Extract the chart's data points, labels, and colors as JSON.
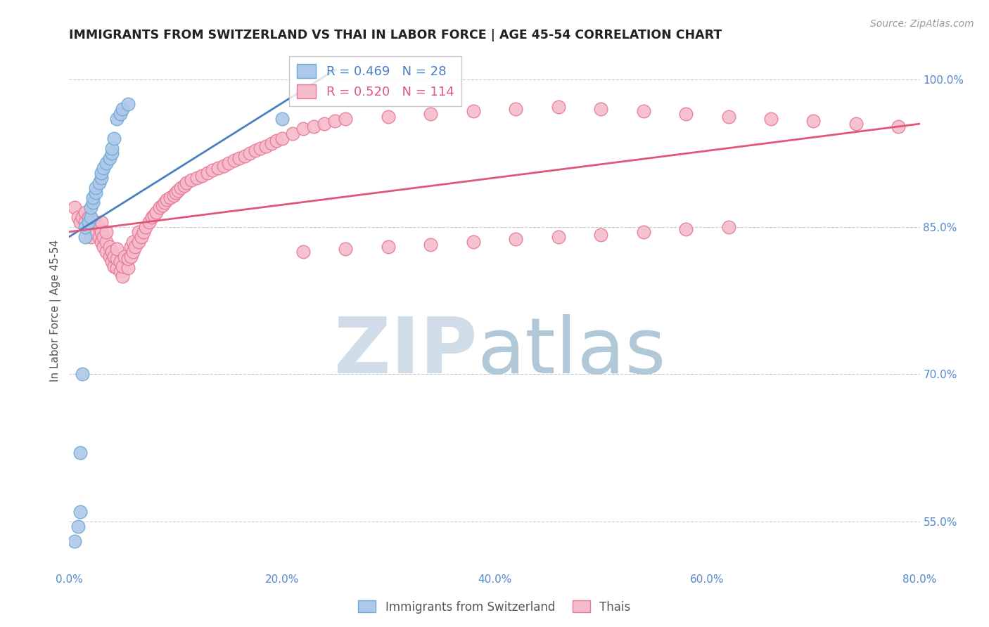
{
  "title": "IMMIGRANTS FROM SWITZERLAND VS THAI IN LABOR FORCE | AGE 45-54 CORRELATION CHART",
  "source": "Source: ZipAtlas.com",
  "ylabel": "In Labor Force | Age 45-54",
  "swiss_R": 0.469,
  "swiss_N": 28,
  "thai_R": 0.52,
  "thai_N": 114,
  "xlim": [
    0.0,
    0.8
  ],
  "ylim": [
    0.5,
    1.03
  ],
  "xtick_labels": [
    "0.0%",
    "",
    "20.0%",
    "",
    "40.0%",
    "",
    "60.0%",
    "",
    "80.0%"
  ],
  "xtick_vals": [
    0.0,
    0.1,
    0.2,
    0.3,
    0.4,
    0.5,
    0.6,
    0.7,
    0.8
  ],
  "ytick_labels_right": [
    "100.0%",
    "85.0%",
    "70.0%",
    "55.0%"
  ],
  "ytick_vals_right": [
    1.0,
    0.85,
    0.7,
    0.55
  ],
  "swiss_color": "#adc8e8",
  "swiss_edge_color": "#6eaad4",
  "thai_color": "#f5bccb",
  "thai_edge_color": "#e87898",
  "swiss_line_color": "#4a7fc1",
  "thai_line_color": "#e05878",
  "title_color": "#222222",
  "axis_color": "#5588cc",
  "watermark_zip_color": "#d0dce8",
  "watermark_atlas_color": "#b0c8d8",
  "swiss_scatter_x": [
    0.005,
    0.008,
    0.01,
    0.01,
    0.012,
    0.015,
    0.015,
    0.018,
    0.02,
    0.02,
    0.022,
    0.022,
    0.025,
    0.025,
    0.028,
    0.03,
    0.03,
    0.032,
    0.035,
    0.038,
    0.04,
    0.04,
    0.042,
    0.045,
    0.048,
    0.05,
    0.055,
    0.2
  ],
  "swiss_scatter_y": [
    0.53,
    0.545,
    0.56,
    0.62,
    0.7,
    0.84,
    0.85,
    0.855,
    0.86,
    0.87,
    0.875,
    0.88,
    0.885,
    0.89,
    0.895,
    0.9,
    0.905,
    0.91,
    0.915,
    0.92,
    0.925,
    0.93,
    0.94,
    0.96,
    0.965,
    0.97,
    0.975,
    0.96
  ],
  "thai_scatter_x": [
    0.005,
    0.008,
    0.01,
    0.012,
    0.015,
    0.015,
    0.018,
    0.018,
    0.02,
    0.02,
    0.02,
    0.022,
    0.022,
    0.025,
    0.025,
    0.028,
    0.028,
    0.03,
    0.03,
    0.03,
    0.032,
    0.032,
    0.035,
    0.035,
    0.035,
    0.038,
    0.038,
    0.04,
    0.04,
    0.042,
    0.042,
    0.045,
    0.045,
    0.045,
    0.048,
    0.048,
    0.05,
    0.05,
    0.052,
    0.055,
    0.055,
    0.058,
    0.058,
    0.06,
    0.06,
    0.062,
    0.065,
    0.065,
    0.068,
    0.07,
    0.072,
    0.075,
    0.078,
    0.08,
    0.082,
    0.085,
    0.088,
    0.09,
    0.092,
    0.095,
    0.098,
    0.1,
    0.102,
    0.105,
    0.108,
    0.11,
    0.115,
    0.12,
    0.125,
    0.13,
    0.135,
    0.14,
    0.145,
    0.15,
    0.155,
    0.16,
    0.165,
    0.17,
    0.175,
    0.18,
    0.185,
    0.19,
    0.195,
    0.2,
    0.21,
    0.22,
    0.23,
    0.24,
    0.25,
    0.26,
    0.3,
    0.34,
    0.38,
    0.42,
    0.46,
    0.5,
    0.54,
    0.58,
    0.62,
    0.66,
    0.7,
    0.74,
    0.78,
    0.62,
    0.58,
    0.54,
    0.5,
    0.46,
    0.42,
    0.38,
    0.34,
    0.3,
    0.26,
    0.22
  ],
  "thai_scatter_y": [
    0.87,
    0.86,
    0.855,
    0.86,
    0.855,
    0.865,
    0.85,
    0.86,
    0.84,
    0.85,
    0.86,
    0.845,
    0.855,
    0.845,
    0.855,
    0.84,
    0.85,
    0.835,
    0.845,
    0.855,
    0.83,
    0.84,
    0.825,
    0.835,
    0.845,
    0.82,
    0.83,
    0.815,
    0.825,
    0.81,
    0.82,
    0.808,
    0.818,
    0.828,
    0.805,
    0.815,
    0.8,
    0.81,
    0.82,
    0.808,
    0.818,
    0.82,
    0.83,
    0.825,
    0.835,
    0.83,
    0.835,
    0.845,
    0.84,
    0.845,
    0.85,
    0.855,
    0.86,
    0.862,
    0.865,
    0.87,
    0.872,
    0.875,
    0.878,
    0.88,
    0.882,
    0.885,
    0.887,
    0.89,
    0.892,
    0.895,
    0.898,
    0.9,
    0.902,
    0.905,
    0.908,
    0.91,
    0.912,
    0.915,
    0.918,
    0.92,
    0.922,
    0.925,
    0.928,
    0.93,
    0.932,
    0.935,
    0.938,
    0.94,
    0.945,
    0.95,
    0.952,
    0.955,
    0.958,
    0.96,
    0.962,
    0.965,
    0.968,
    0.97,
    0.972,
    0.97,
    0.968,
    0.965,
    0.962,
    0.96,
    0.958,
    0.955,
    0.952,
    0.85,
    0.848,
    0.845,
    0.842,
    0.84,
    0.838,
    0.835,
    0.832,
    0.83,
    0.828,
    0.825
  ]
}
